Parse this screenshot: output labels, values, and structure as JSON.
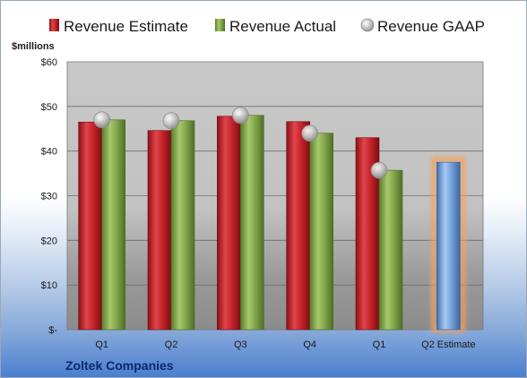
{
  "chart_data": {
    "type": "bar",
    "unit_label": "$millions",
    "company": "Zoltek Companies",
    "categories": [
      "Q1",
      "Q2",
      "Q3",
      "Q4",
      "Q1",
      "Q2 Estimate"
    ],
    "ylim": [
      0,
      60
    ],
    "y_ticks": [
      0,
      10,
      20,
      30,
      40,
      50,
      60
    ],
    "y_tick_labels": [
      "$-",
      "$10",
      "$20",
      "$30",
      "$40",
      "$50",
      "$60"
    ],
    "legend_position": "top",
    "grid": true,
    "series": [
      {
        "name": "Revenue Estimate",
        "kind": "bar",
        "color": "#c0242c",
        "values": [
          46.5,
          44.6,
          47.8,
          46.6,
          43.0,
          null
        ]
      },
      {
        "name": "Revenue Actual",
        "kind": "bar",
        "color": "#7fa548",
        "values": [
          47.0,
          46.8,
          48.0,
          44.0,
          35.7,
          null
        ]
      },
      {
        "name": "Revenue GAAP",
        "kind": "marker",
        "color": "#b8b8b8",
        "values": [
          47.0,
          46.8,
          48.0,
          44.0,
          35.7,
          null
        ]
      },
      {
        "name": "Q2 Estimate",
        "kind": "bar",
        "color": "#6f9fd8",
        "highlight": "#f5a35a",
        "values": [
          null,
          null,
          null,
          null,
          null,
          37.5
        ]
      }
    ]
  }
}
